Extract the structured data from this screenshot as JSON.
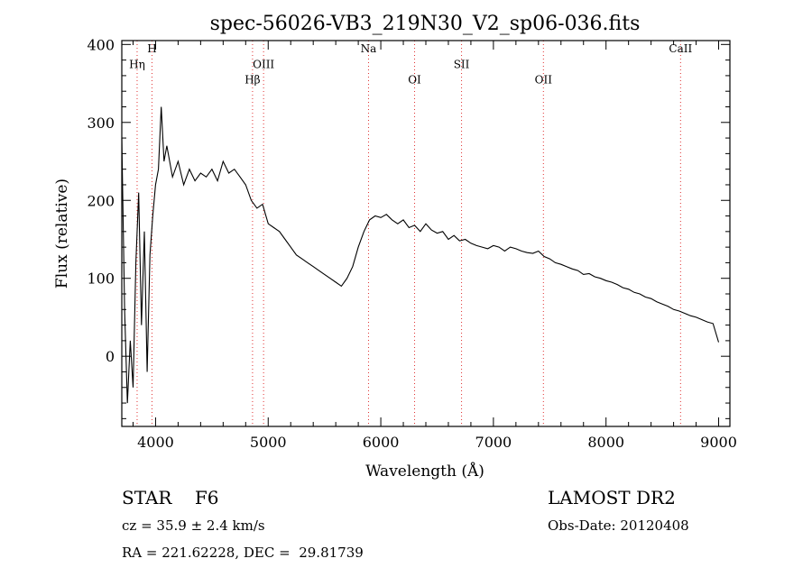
{
  "chart_data": {
    "type": "line",
    "title": "spec-56026-VB3_219N30_V2_sp06-036.fits",
    "xlabel": "Wavelength (Å)",
    "ylabel": "Flux (relative)",
    "xlim": [
      3700,
      9100
    ],
    "ylim": [
      -90,
      405
    ],
    "x_ticks": [
      4000,
      5000,
      6000,
      7000,
      8000,
      9000
    ],
    "x_tick_labels": [
      "4000",
      "5000",
      "6000",
      "7000",
      "8000",
      "9000"
    ],
    "y_ticks": [
      0,
      100,
      200,
      300,
      400
    ],
    "y_tick_labels": [
      "0",
      "100",
      "200",
      "300",
      "400"
    ],
    "grid": false,
    "series": [
      {
        "color": "#000000",
        "x": [
          3700,
          3725,
          3750,
          3775,
          3800,
          3825,
          3850,
          3875,
          3900,
          3925,
          3950,
          3975,
          4000,
          4025,
          4050,
          4075,
          4100,
          4150,
          4200,
          4250,
          4300,
          4350,
          4400,
          4450,
          4500,
          4550,
          4600,
          4650,
          4700,
          4750,
          4800,
          4850,
          4900,
          4950,
          5000,
          5050,
          5100,
          5150,
          5200,
          5250,
          5300,
          5350,
          5400,
          5450,
          5500,
          5550,
          5600,
          5650,
          5700,
          5750,
          5800,
          5850,
          5900,
          5950,
          6000,
          6050,
          6100,
          6150,
          6200,
          6250,
          6300,
          6350,
          6400,
          6450,
          6500,
          6550,
          6600,
          6650,
          6700,
          6750,
          6800,
          6850,
          6900,
          6950,
          7000,
          7050,
          7100,
          7150,
          7200,
          7250,
          7300,
          7350,
          7400,
          7450,
          7500,
          7550,
          7600,
          7650,
          7700,
          7750,
          7800,
          7850,
          7900,
          7950,
          8000,
          8050,
          8100,
          8150,
          8200,
          8250,
          8300,
          8350,
          8400,
          8450,
          8500,
          8550,
          8600,
          8650,
          8700,
          8750,
          8800,
          8850,
          8900,
          8950,
          9000
        ],
        "y": [
          280,
          60,
          -60,
          20,
          -40,
          120,
          210,
          40,
          160,
          -20,
          130,
          180,
          220,
          240,
          320,
          250,
          270,
          230,
          250,
          220,
          240,
          225,
          235,
          230,
          240,
          225,
          250,
          235,
          240,
          230,
          220,
          200,
          190,
          195,
          170,
          165,
          160,
          150,
          140,
          130,
          125,
          120,
          115,
          110,
          105,
          100,
          95,
          90,
          100,
          115,
          140,
          160,
          175,
          180,
          178,
          182,
          175,
          170,
          175,
          165,
          168,
          160,
          170,
          162,
          158,
          160,
          150,
          155,
          148,
          150,
          145,
          142,
          140,
          138,
          142,
          140,
          135,
          140,
          138,
          135,
          133,
          132,
          135,
          128,
          125,
          120,
          118,
          115,
          112,
          110,
          105,
          106,
          102,
          100,
          97,
          95,
          92,
          88,
          86,
          82,
          80,
          76,
          74,
          70,
          67,
          64,
          60,
          58,
          55,
          52,
          50,
          47,
          44,
          42,
          18
        ]
      }
    ],
    "annotations": [
      {
        "x": 3836,
        "label": "Hη",
        "label_flux": 370
      },
      {
        "x": 3968,
        "label": "H",
        "label_flux": 390
      },
      {
        "x": 4861,
        "label": "Hβ",
        "label_flux": 350
      },
      {
        "x": 4959,
        "label": "OIII",
        "label_flux": 370
      },
      {
        "x": 5891,
        "label": "Na",
        "label_flux": 390
      },
      {
        "x": 6300,
        "label": "OI",
        "label_flux": 350
      },
      {
        "x": 6717,
        "label": "SII",
        "label_flux": 370
      },
      {
        "x": 7444,
        "label": "OII",
        "label_flux": 350
      },
      {
        "x": 8662,
        "label": "CaII",
        "label_flux": 390
      }
    ]
  },
  "info": {
    "class_line": "STAR    F6",
    "survey": "LAMOST DR2",
    "cz": "cz = 35.9 ± 2.4 km/s",
    "obs_date": "Obs-Date: 20120408",
    "radec": "RA = 221.62228, DEC =  29.81739"
  },
  "colors": {
    "line_marker": "#e03030",
    "spectrum": "#000000",
    "axes": "#000000"
  }
}
